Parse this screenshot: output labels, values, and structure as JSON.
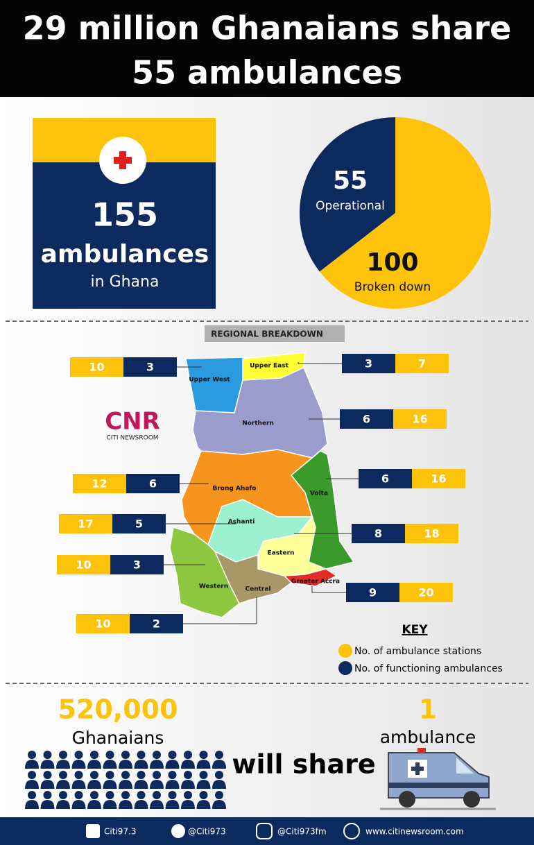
{
  "header": {
    "title_lines": [
      "29 million Ghanaians share",
      "55 ambulances"
    ]
  },
  "total_card": {
    "number": "155",
    "label": "ambulances",
    "sublabel": "in Ghana"
  },
  "chart_data": {
    "type": "pie",
    "categories": [
      "Operational",
      "Broken down"
    ],
    "values": [
      55,
      100
    ],
    "colors": [
      "#0d2a5e",
      "#fdc20a"
    ]
  },
  "regional": {
    "title": "REGIONAL BREAKDOWN",
    "regions": [
      {
        "name": "Upper West",
        "stations": "10",
        "functioning": "3",
        "color": "#2b9be0"
      },
      {
        "name": "Upper East",
        "stations": "7",
        "functioning": "3",
        "color": "#ffff33"
      },
      {
        "name": "Northern",
        "stations": "16",
        "functioning": "6",
        "color": "#9a9ccc"
      },
      {
        "name": "Brong Ahafo",
        "stations": "12",
        "functioning": "6",
        "color": "#f7941d"
      },
      {
        "name": "Volta",
        "stations": "16",
        "functioning": "6",
        "color": "#3a9a2a"
      },
      {
        "name": "Ashanti",
        "stations": "17",
        "functioning": "5",
        "color": "#9bf0d0"
      },
      {
        "name": "Eastern",
        "stations": "18",
        "functioning": "8",
        "color": "#ffff99"
      },
      {
        "name": "Western",
        "stations": "10",
        "functioning": "3",
        "color": "#8dc63f"
      },
      {
        "name": "Greater Accra",
        "stations": "20",
        "functioning": "9",
        "color": "#e52a2a"
      },
      {
        "name": "Central",
        "stations": "10",
        "functioning": "2",
        "color": "#a89868"
      }
    ],
    "key": {
      "title": "KEY",
      "stations": "No. of ambulance stations",
      "functioning": "No. of functioning ambulances"
    }
  },
  "logo": {
    "mark": "CNR",
    "name": "CITI NEWSROOM"
  },
  "comparison": {
    "people": "520,000",
    "people_label": "Ghanaians",
    "verb": "will share",
    "ambulances": "1",
    "ambulance_label": "ambulance"
  },
  "footer": {
    "facebook": "Citi97.3",
    "twitter": "@Citi973",
    "instagram": "@Citi973fm",
    "website": "www.citinewsroom.com"
  }
}
